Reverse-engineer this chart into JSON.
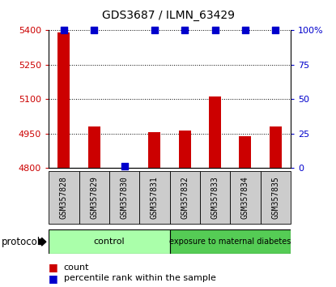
{
  "title": "GDS3687 / ILMN_63429",
  "samples": [
    "GSM357828",
    "GSM357829",
    "GSM357830",
    "GSM357831",
    "GSM357832",
    "GSM357833",
    "GSM357834",
    "GSM357835"
  ],
  "counts": [
    5390,
    4982,
    4802,
    4957,
    4962,
    5110,
    4937,
    4982
  ],
  "percentile_ranks": [
    100,
    100,
    1,
    100,
    100,
    100,
    100,
    100
  ],
  "ylim": [
    4800,
    5400
  ],
  "yticks_left": [
    4800,
    4950,
    5100,
    5250,
    5400
  ],
  "yticks_right": [
    0,
    25,
    50,
    75,
    100
  ],
  "right_ylim": [
    0,
    100
  ],
  "bar_color": "#cc0000",
  "dot_color": "#0000cc",
  "grid_color": "#000000",
  "n_control": 4,
  "n_treatment": 4,
  "control_label": "control",
  "treatment_label": "exposure to maternal diabetes",
  "control_bg": "#aaffaa",
  "treatment_bg": "#55cc55",
  "protocol_label": "protocol",
  "legend_count_label": "count",
  "legend_pct_label": "percentile rank within the sample",
  "tick_label_bg": "#cccccc",
  "bar_width": 0.4,
  "dot_size": 40,
  "title_fontsize": 10,
  "tick_fontsize": 8,
  "label_fontsize": 7
}
